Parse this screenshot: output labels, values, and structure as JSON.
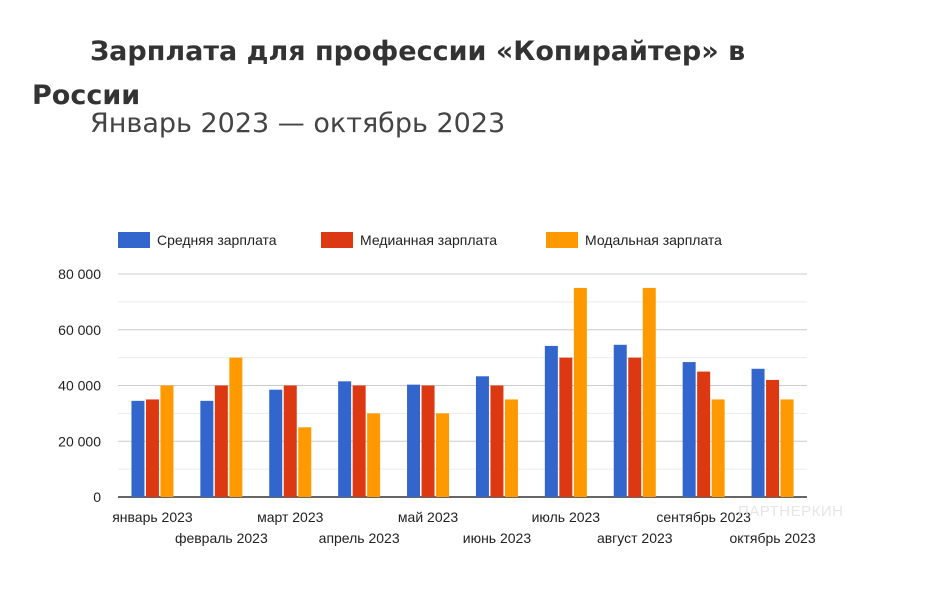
{
  "header": {
    "title": "Зарплата для профессии «Копирайтер» в России",
    "subtitle": "Январь 2023 — октябрь 2023"
  },
  "watermark": "ПАРТНЕРКИН",
  "colors": {
    "series": [
      "#3366cc",
      "#dc3912",
      "#ff9900"
    ],
    "grid": "#cccccc",
    "minor_grid": "#ebebeb",
    "axis": "#333333",
    "text": "#222222"
  },
  "chart_data": {
    "type": "bar",
    "title": "Зарплата для профессии «Копирайтер» в России",
    "subtitle": "Январь 2023 — октябрь 2023",
    "xlabel": "",
    "ylabel": "",
    "ylim": [
      0,
      80000
    ],
    "yticks": [
      0,
      20000,
      40000,
      60000,
      80000
    ],
    "ytick_labels": [
      "0",
      "20 000",
      "40 000",
      "60 000",
      "80 000"
    ],
    "legend_position": "top",
    "grid": true,
    "categories": [
      "январь 2023",
      "февраль 2023",
      "март 2023",
      "апрель 2023",
      "май 2023",
      "июнь 2023",
      "июль 2023",
      "август 2023",
      "сентябрь 2023",
      "октябрь 2023"
    ],
    "series": [
      {
        "name": "Средняя зарплата",
        "values": [
          34500,
          34500,
          38500,
          41500,
          40300,
          43300,
          54200,
          54600,
          48400,
          46000
        ]
      },
      {
        "name": "Медианная зарплата",
        "values": [
          35000,
          40000,
          40000,
          40000,
          40000,
          40000,
          50000,
          50000,
          45000,
          42000
        ]
      },
      {
        "name": "Модальная зарплата",
        "values": [
          40000,
          50000,
          25000,
          30000,
          30000,
          35000,
          75000,
          75000,
          35000,
          35000
        ]
      }
    ]
  }
}
